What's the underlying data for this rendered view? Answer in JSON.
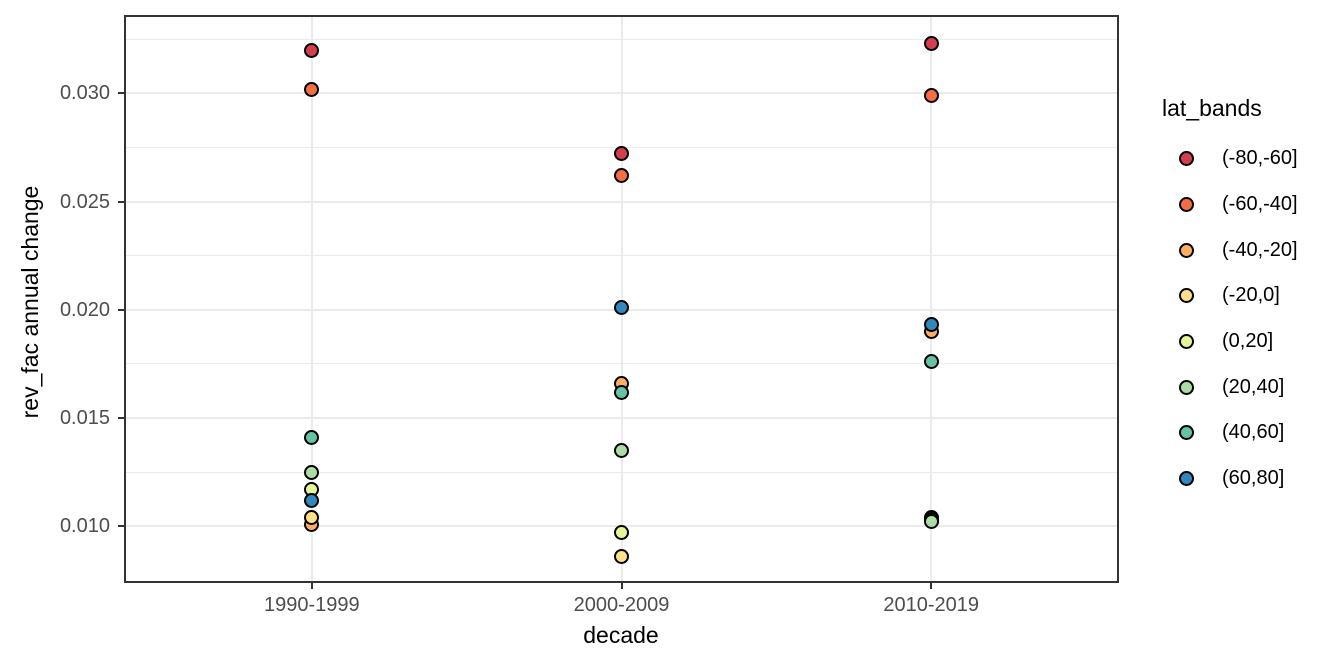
{
  "style": {
    "background": "#ffffff",
    "panel_border": "#333333",
    "gridline_color": "#ebebeb",
    "tick_color": "#333333",
    "tick_label_color": "#4d4d4d",
    "text_color": "#000000",
    "point_outline": "#000000"
  },
  "axes": {
    "x_title": "decade",
    "y_title": "rev_fac annual change"
  },
  "legend": {
    "title": "lat_bands"
  },
  "chart_data": {
    "type": "scatter",
    "title": "",
    "xlabel": "decade",
    "ylabel": "rev_fac annual change",
    "categories": [
      "1990-1999",
      "2000-2009",
      "2010-2019"
    ],
    "y_ticks": [
      0.01,
      0.015,
      0.02,
      0.025,
      0.03
    ],
    "y_tick_labels": [
      "0.010",
      "0.015",
      "0.020",
      "0.025",
      "0.030"
    ],
    "ylim": [
      0.00747,
      0.03353
    ],
    "grid": "major-and-minor-horizontal, major-vertical",
    "legend_position": "right",
    "legend_title": "lat_bands",
    "point_shape": "filled-circle-black-outline",
    "series": [
      {
        "name": "(-80,-60]",
        "color": "#d53e4f",
        "values": [
          0.032,
          0.0272,
          0.0323
        ]
      },
      {
        "name": "(-60,-40]",
        "color": "#f46d43",
        "values": [
          0.0302,
          0.0262,
          0.0299
        ]
      },
      {
        "name": "(-40,-20]",
        "color": "#fdae61",
        "values": [
          0.0101,
          0.0166,
          0.019
        ]
      },
      {
        "name": "(-20,0]",
        "color": "#fee08b",
        "values": [
          0.0104,
          0.0086,
          0.0104
        ]
      },
      {
        "name": "(0,20]",
        "color": "#e6f598",
        "values": [
          0.0117,
          0.0097,
          0.0103
        ]
      },
      {
        "name": "(20,40]",
        "color": "#abdda4",
        "values": [
          0.0125,
          0.0135,
          0.0102
        ]
      },
      {
        "name": "(40,60]",
        "color": "#66c2a5",
        "values": [
          0.0141,
          0.0162,
          0.0176
        ]
      },
      {
        "name": "(60,80]",
        "color": "#3288bd",
        "values": [
          0.0112,
          0.0201,
          0.0193
        ]
      }
    ]
  }
}
